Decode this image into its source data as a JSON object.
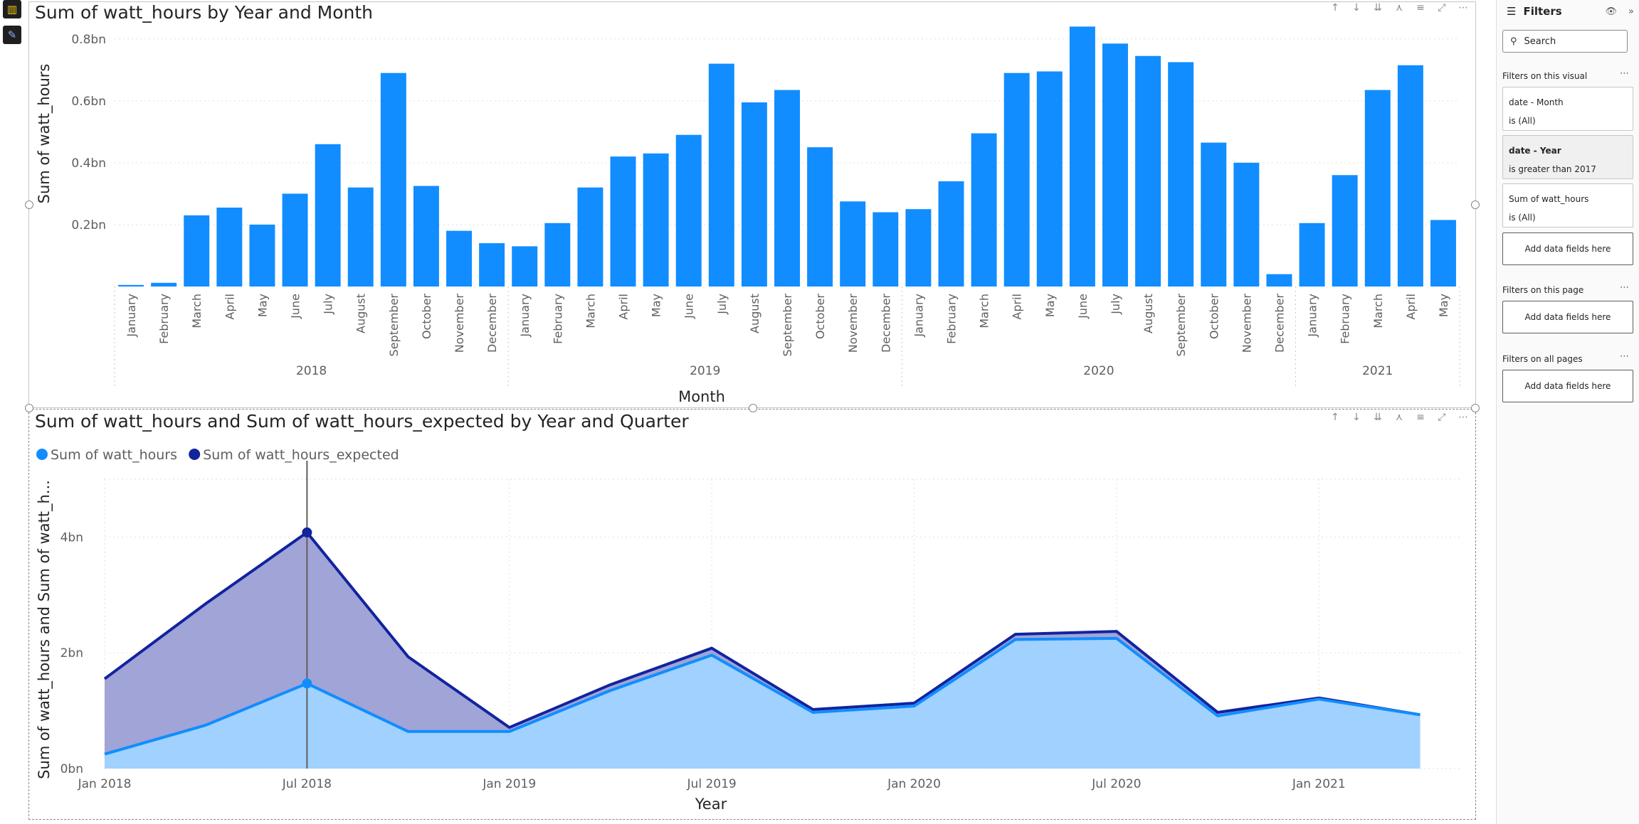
{
  "rail": {
    "report_icon": "bar-chart-icon",
    "format_icon": "paintbrush-icon"
  },
  "visual_header_icons": [
    "arrow-up-icon",
    "arrow-down-icon",
    "double-arrow-down-icon",
    "expand-hierarchy-icon",
    "filter-icon",
    "focus-mode-icon",
    "more-options-icon"
  ],
  "chart_data": [
    {
      "type": "bar",
      "title": "Sum of watt_hours by Year and Month",
      "xlabel": "Month",
      "ylabel": "Sum of watt_hours",
      "color": "#118DFF",
      "y_ticks": [
        "0.2bn",
        "0.4bn",
        "0.6bn",
        "0.8bn"
      ],
      "y_tick_values": [
        0.2,
        0.4,
        0.6,
        0.8
      ],
      "ylim": [
        0,
        0.85
      ],
      "grid": true,
      "groups": [
        {
          "year": "2018",
          "months": [
            "January",
            "February",
            "March",
            "April",
            "May",
            "June",
            "July",
            "August",
            "September",
            "October",
            "November",
            "December"
          ],
          "values": [
            0.005,
            0.012,
            0.23,
            0.255,
            0.2,
            0.3,
            0.46,
            0.32,
            0.69,
            0.325,
            0.18,
            0.14
          ]
        },
        {
          "year": "2019",
          "months": [
            "January",
            "February",
            "March",
            "April",
            "May",
            "June",
            "July",
            "August",
            "September",
            "October",
            "November",
            "December"
          ],
          "values": [
            0.13,
            0.205,
            0.32,
            0.42,
            0.43,
            0.49,
            0.72,
            0.595,
            0.635,
            0.45,
            0.275,
            0.24
          ]
        },
        {
          "year": "2020",
          "months": [
            "January",
            "February",
            "March",
            "April",
            "May",
            "June",
            "July",
            "August",
            "September",
            "October",
            "November",
            "December"
          ],
          "values": [
            0.25,
            0.34,
            0.495,
            0.69,
            0.695,
            0.84,
            0.785,
            0.745,
            0.725,
            0.465,
            0.4,
            0.04
          ]
        },
        {
          "year": "2021",
          "months": [
            "January",
            "February",
            "March",
            "April",
            "May"
          ],
          "values": [
            0.205,
            0.36,
            0.635,
            0.715,
            0.215
          ]
        }
      ]
    },
    {
      "type": "area",
      "title": "Sum of watt_hours and Sum of watt_hours_expected by Year and Quarter",
      "xlabel": "Year",
      "ylabel": "Sum of watt_hours and Sum of watt_h...",
      "x": [
        "2018-01-01",
        "2018-04-01",
        "2018-07-01",
        "2018-10-01",
        "2019-01-01",
        "2019-04-01",
        "2019-07-01",
        "2019-10-01",
        "2020-01-01",
        "2020-04-01",
        "2020-07-01",
        "2020-10-01",
        "2021-01-01",
        "2021-04-01"
      ],
      "x_ticks": [
        "Jan 2018",
        "Jul 2018",
        "Jan 2019",
        "Jul 2019",
        "Jan 2020",
        "Jul 2020",
        "Jan 2021"
      ],
      "y_ticks": [
        "0bn",
        "2bn",
        "4bn"
      ],
      "y_tick_values": [
        0,
        2,
        4
      ],
      "ylim": [
        0,
        5
      ],
      "grid": true,
      "legend_position": "top-left",
      "hover_index": 2,
      "series": [
        {
          "name": "Sum of watt_hours",
          "color": "#118DFF",
          "fill": "#A0D1FF",
          "values": [
            0.25,
            0.75,
            1.47,
            0.64,
            0.64,
            1.35,
            1.96,
            0.97,
            1.08,
            2.23,
            2.25,
            0.91,
            1.2,
            0.93
          ]
        },
        {
          "name": "Sum of watt_hours_expected",
          "color": "#12239E",
          "fill": "#A0A4D6",
          "values": [
            1.55,
            2.85,
            4.08,
            1.93,
            0.71,
            1.45,
            2.08,
            1.02,
            1.13,
            2.32,
            2.37,
            0.97,
            1.22,
            0.93
          ]
        }
      ]
    }
  ],
  "filters": {
    "title": "Filters",
    "search_placeholder": "Search",
    "on_visual": "Filters on this visual",
    "cards": [
      {
        "name": "date - Month",
        "condition": "is (All)"
      },
      {
        "name": "date - Year",
        "condition": "is greater than 2017"
      },
      {
        "name": "Sum of watt_hours",
        "condition": "is (All)"
      }
    ],
    "add_fields": "Add data fields here",
    "on_page": "Filters on this page",
    "on_all": "Filters on all pages"
  }
}
